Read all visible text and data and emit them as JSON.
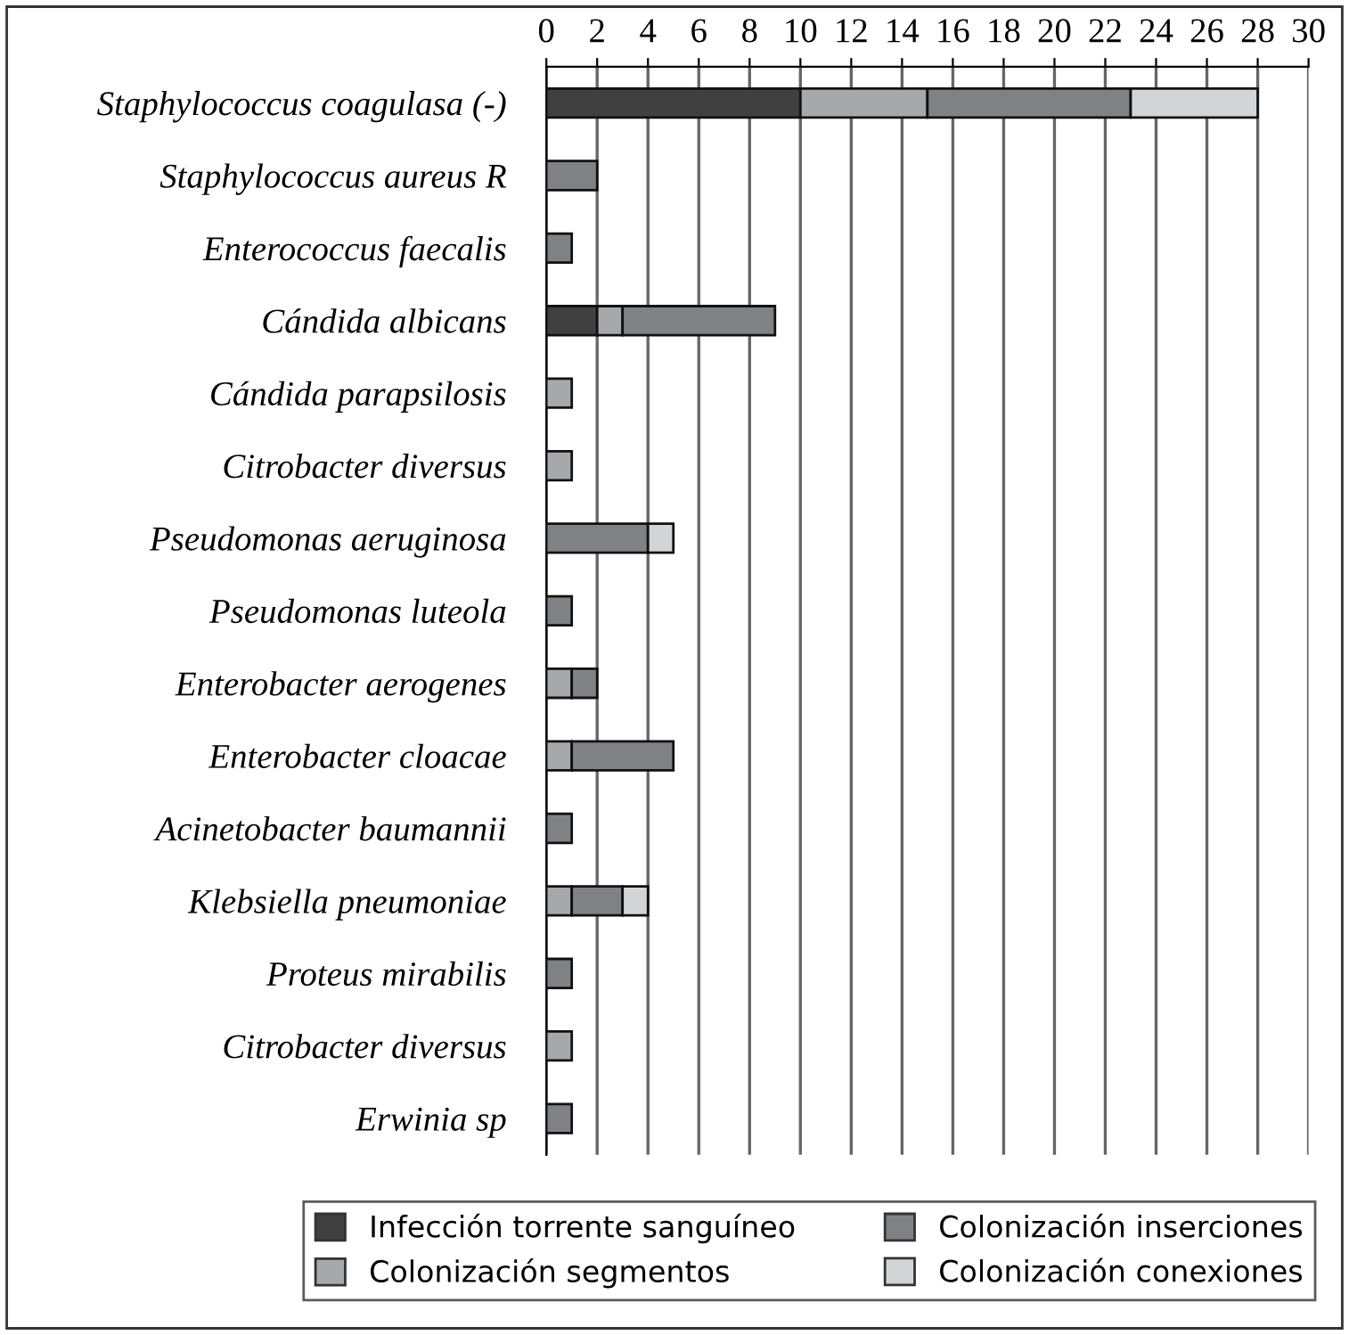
{
  "chart_data": {
    "type": "bar",
    "orientation": "horizontal",
    "stacked": true,
    "categories": [
      "Staphylococcus coagulasa (-)",
      "Staphylococcus aureus R",
      "Enterococcus faecalis",
      "Cándida albicans",
      "Cándida parapsilosis",
      "Citrobacter diversus",
      "Pseudomonas aeruginosa",
      "Pseudomonas luteola",
      "Enterobacter aerogenes",
      "Enterobacter cloacae",
      "Acinetobacter baumannii",
      "Klebsiella pneumoniae",
      "Proteus mirabilis",
      "Citrobacter diversus",
      "Erwinia sp"
    ],
    "series": [
      {
        "name": "Infección torrente sanguíneo",
        "color": "#404040",
        "values": [
          10,
          0,
          0,
          2,
          0,
          0,
          0,
          0,
          0,
          0,
          0,
          0,
          0,
          0,
          0
        ]
      },
      {
        "name": "Colonización segmentos",
        "color": "#a7a8ab",
        "values": [
          5,
          0,
          0,
          1,
          1,
          1,
          0,
          0,
          1,
          1,
          0,
          1,
          0,
          1,
          0
        ]
      },
      {
        "name": "Colonización inserciones",
        "color": "#808184",
        "values": [
          8,
          2,
          1,
          6,
          0,
          0,
          4,
          1,
          1,
          4,
          1,
          2,
          1,
          0,
          1
        ]
      },
      {
        "name": "Colonización conexiones",
        "color": "#d3d4d5",
        "values": [
          5,
          0,
          0,
          0,
          0,
          0,
          1,
          0,
          0,
          0,
          0,
          1,
          0,
          0,
          0
        ]
      }
    ],
    "xlim": [
      0,
      30
    ],
    "xticks": [
      0,
      2,
      4,
      6,
      8,
      10,
      12,
      14,
      16,
      18,
      20,
      22,
      24,
      26,
      28,
      30
    ],
    "grid": "x",
    "legend": "bottom"
  }
}
